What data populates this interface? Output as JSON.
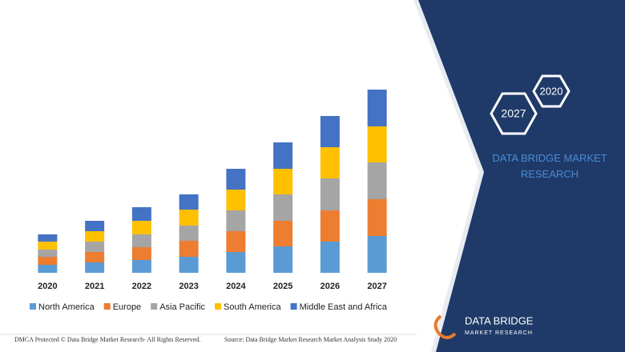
{
  "chart_data": {
    "type": "bar",
    "stacked": true,
    "categories": [
      "2020",
      "2021",
      "2022",
      "2023",
      "2024",
      "2025",
      "2026",
      "2027"
    ],
    "series": [
      {
        "name": "North America",
        "color": "#5b9bd5",
        "values": [
          10,
          13,
          16,
          20,
          26,
          33,
          39,
          46
        ]
      },
      {
        "name": "Europe",
        "color": "#ed7d31",
        "values": [
          10,
          13,
          16,
          20,
          26,
          32,
          39,
          46
        ]
      },
      {
        "name": "Asia Pacific",
        "color": "#a5a5a5",
        "values": [
          9,
          13,
          16,
          19,
          26,
          33,
          40,
          46
        ]
      },
      {
        "name": "South America",
        "color": "#ffc000",
        "values": [
          10,
          13,
          17,
          20,
          26,
          32,
          39,
          45
        ]
      },
      {
        "name": "Middle East and Africa",
        "color": "#4472c4",
        "values": [
          9,
          13,
          17,
          19,
          26,
          33,
          39,
          46
        ]
      }
    ],
    "legend": "bottom"
  },
  "panel": {
    "badges": [
      "2020",
      "2027"
    ],
    "brand": "DATA BRIDGE MARKET RESEARCH"
  },
  "logo": {
    "name": "DATA BRIDGE",
    "tagline": "MARKET RESEARCH"
  },
  "footer": {
    "dmca": "DMCA Protected © Data Bridge Market Research- All Rights Reserved.",
    "source": "Source: Data Bridge Market Research Market Analysis Study 2020"
  }
}
